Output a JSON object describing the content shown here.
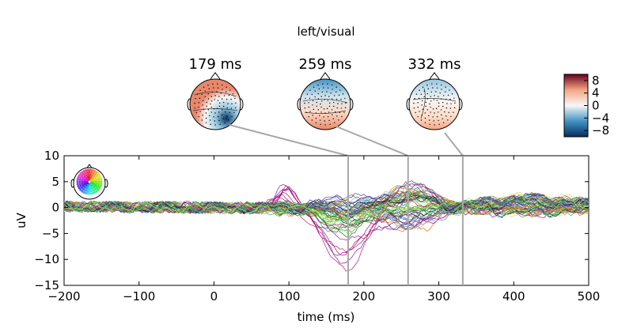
{
  "chart_data": {
    "type": "line",
    "title": "left/visual",
    "xlabel": "time (ms)",
    "ylabel": "uV",
    "xlim": [
      -200,
      500
    ],
    "ylim": [
      -15,
      10
    ],
    "xticks": [
      -200,
      -100,
      0,
      100,
      200,
      300,
      400,
      500
    ],
    "yticks": [
      10,
      5,
      0,
      -5,
      -10,
      -15
    ],
    "grid": false,
    "topomaps": [
      {
        "label": "179 ms",
        "time": 179
      },
      {
        "label": "259 ms",
        "time": 259
      },
      {
        "label": "332 ms",
        "time": 332
      }
    ],
    "colorbar": {
      "ticks": [
        8,
        4,
        0,
        -4,
        -8
      ],
      "tick_labels": [
        "8",
        "4",
        "0",
        "−4",
        "−8"
      ],
      "range": [
        -10,
        10
      ],
      "colors": [
        "#053061",
        "#4393c3",
        "#f7f7f7",
        "#f4a582",
        "#67001f"
      ]
    },
    "series_color_groups": [
      "#1a7a1a",
      "#3aa53a",
      "#7ed957",
      "#c7e06a",
      "#d4a020",
      "#e07020",
      "#c0186a",
      "#8a1a9a",
      "#5a2a90",
      "#3050c0",
      "#3b8fd8",
      "#7fbfe0",
      "#6a6a6a",
      "#202020"
    ]
  }
}
